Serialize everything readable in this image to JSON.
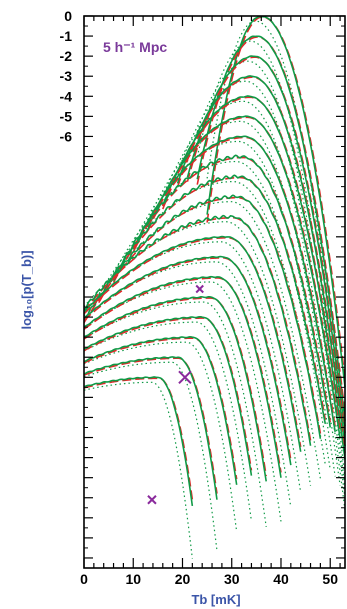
{
  "chart_data": {
    "type": "line",
    "title": "",
    "annotation": "5 h⁻¹ Mpc",
    "xlabel": "Tb [mK]",
    "ylabel": "log₁₀[p(T_b)]",
    "xlim": [
      0,
      53
    ],
    "ylim": [
      -27.5,
      0
    ],
    "y_tick_labels_shown": [
      "0",
      "-1",
      "-2",
      "-3",
      "-4",
      "-5",
      "-6"
    ],
    "x_tick_labels": [
      "0",
      "10",
      "20",
      "30",
      "40",
      "50"
    ],
    "grid": false,
    "legend": "none",
    "notes": "19 pairs of curves offset vertically by 1 each; green solid = simulation, red dashed = model, green dotted = secondary. Three purple x markers.",
    "colors": {
      "solid": "#0f9a46",
      "dashed": "#e02828",
      "marker": "#8a2a9c",
      "annotation": "#7a3a9a",
      "axis_title": "#3b55a8"
    },
    "series": [
      {
        "offset": 0,
        "peak_x": 36.0,
        "sigma_left": 3.5,
        "sigma_right": 5.0,
        "x_start": 25.0,
        "x_end": 53.0
      },
      {
        "offset": 1,
        "peak_x": 35.0,
        "sigma_left": 4.5,
        "sigma_right": 5.2,
        "x_start": 23.0,
        "x_end": 53.0
      },
      {
        "offset": 2,
        "peak_x": 34.5,
        "sigma_left": 5.5,
        "sigma_right": 5.4,
        "x_start": 21.0,
        "x_end": 53.0
      },
      {
        "offset": 3,
        "peak_x": 34.0,
        "sigma_left": 6.5,
        "sigma_right": 5.6,
        "x_start": 19.0,
        "x_end": 53.0
      },
      {
        "offset": 4,
        "peak_x": 33.5,
        "sigma_left": 7.5,
        "sigma_right": 5.8,
        "x_start": 16.0,
        "x_end": 53.0
      },
      {
        "offset": 5,
        "peak_x": 33.0,
        "sigma_left": 8.5,
        "sigma_right": 6.0,
        "x_start": 13.0,
        "x_end": 52.0
      },
      {
        "offset": 6,
        "peak_x": 32.5,
        "sigma_left": 9.5,
        "sigma_right": 6.1,
        "x_start": 10.0,
        "x_end": 51.0
      },
      {
        "offset": 7,
        "peak_x": 32.0,
        "sigma_left": 10.5,
        "sigma_right": 6.2,
        "x_start": 6.0,
        "x_end": 50.0
      },
      {
        "offset": 8,
        "peak_x": 31.5,
        "sigma_left": 11.5,
        "sigma_right": 6.3,
        "x_start": 3.0,
        "x_end": 49.0
      },
      {
        "offset": 9,
        "peak_x": 31.0,
        "sigma_left": 12.5,
        "sigma_right": 6.2,
        "x_start": 0.0,
        "x_end": 48.0
      },
      {
        "offset": 10,
        "peak_x": 30.0,
        "sigma_left": 14.0,
        "sigma_right": 6.0,
        "x_start": 0.0,
        "x_end": 46.0
      },
      {
        "offset": 11,
        "peak_x": 29.0,
        "sigma_left": 15.0,
        "sigma_right": 5.8,
        "x_start": 0.0,
        "x_end": 44.0
      },
      {
        "offset": 12,
        "peak_x": 28.0,
        "sigma_left": 16.0,
        "sigma_right": 5.5,
        "x_start": 0.0,
        "x_end": 42.0
      },
      {
        "offset": 13,
        "peak_x": 27.0,
        "sigma_left": 17.0,
        "sigma_right": 5.2,
        "x_start": 0.0,
        "x_end": 40.0
      },
      {
        "offset": 14,
        "peak_x": 25.5,
        "sigma_left": 18.0,
        "sigma_right": 4.8,
        "x_start": 0.0,
        "x_end": 37.0
      },
      {
        "offset": 15,
        "peak_x": 24.0,
        "sigma_left": 19.0,
        "sigma_right": 4.5,
        "x_start": 0.0,
        "x_end": 34.0
      },
      {
        "offset": 16,
        "peak_x": 22.0,
        "sigma_left": 20.0,
        "sigma_right": 4.2,
        "x_start": 0.0,
        "x_end": 31.0
      },
      {
        "offset": 17,
        "peak_x": 19.0,
        "sigma_left": 21.0,
        "sigma_right": 3.8,
        "x_start": 0.0,
        "x_end": 27.0
      },
      {
        "offset": 18,
        "peak_x": 15.0,
        "sigma_left": 22.0,
        "sigma_right": 3.5,
        "x_start": 0.0,
        "x_end": 22.0
      }
    ],
    "markers": [
      {
        "x": 23.5,
        "y": -13.6,
        "size": "small"
      },
      {
        "x": 20.5,
        "y": -18.0,
        "size": "large"
      },
      {
        "x": 13.8,
        "y": -24.1,
        "size": "medium"
      }
    ]
  }
}
